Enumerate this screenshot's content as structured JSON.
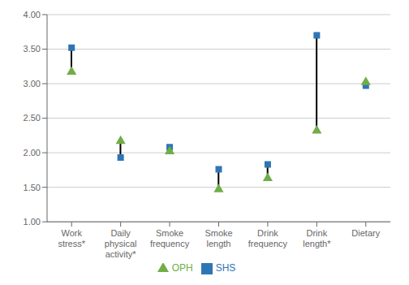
{
  "chart_data": {
    "type": "dumbbell",
    "categories": [
      "Work\nstress*",
      "Daily\nphysical\nactivity*",
      "Smoke\nfrequency",
      "Smoke\nlength",
      "Drink\nfrequency",
      "Drink\nlength*",
      "Dietary"
    ],
    "series": [
      {
        "name": "SHS",
        "color": "#2E75B6",
        "marker": "square",
        "values": [
          3.52,
          1.93,
          2.08,
          1.76,
          1.83,
          3.7,
          2.97
        ]
      },
      {
        "name": "OPH",
        "color": "#70AD47",
        "marker": "triangle",
        "values": [
          3.17,
          2.17,
          2.02,
          1.47,
          1.63,
          2.32,
          3.02
        ]
      }
    ],
    "ylim": [
      1.0,
      4.0
    ],
    "yticks": [
      {
        "value": 1.0,
        "label": "1.00"
      },
      {
        "value": 1.5,
        "label": "1.50"
      },
      {
        "value": 2.0,
        "label": "2.00"
      },
      {
        "value": 2.5,
        "label": "2.50"
      },
      {
        "value": 3.0,
        "label": "3.00"
      },
      {
        "value": 3.5,
        "label": "3.50"
      },
      {
        "value": 4.0,
        "label": "4.00"
      }
    ],
    "grid": true,
    "legend": "bottom"
  }
}
